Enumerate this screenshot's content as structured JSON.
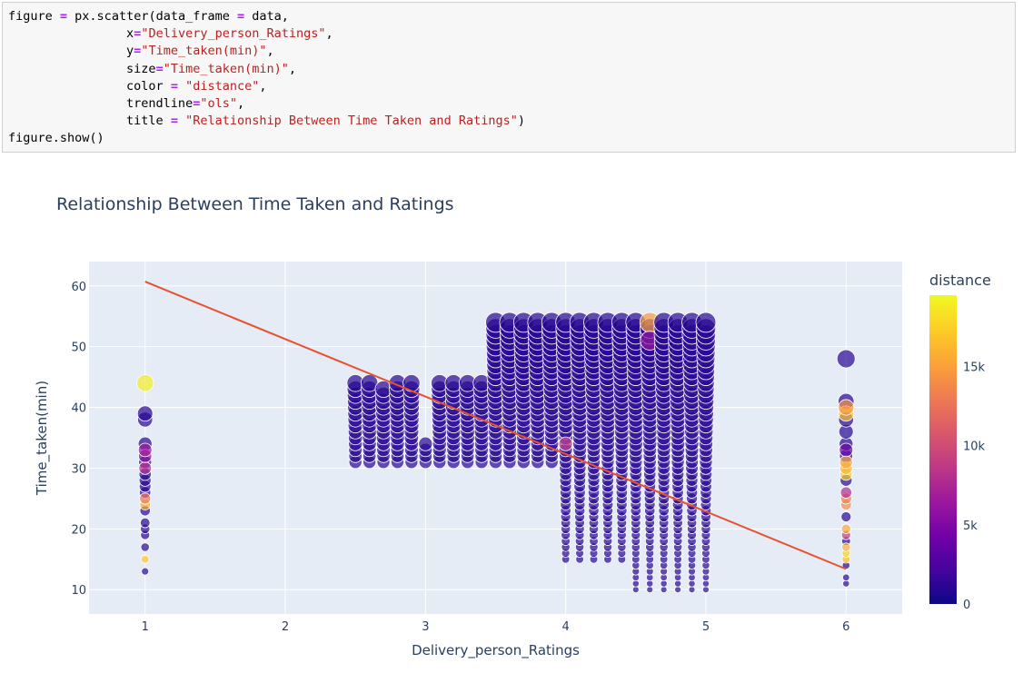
{
  "code": {
    "lines": [
      [
        {
          "t": "figure "
        },
        {
          "t": "=",
          "c": "op"
        },
        {
          "t": " px.scatter(data_frame "
        },
        {
          "t": "=",
          "c": "op"
        },
        {
          "t": " data,"
        }
      ],
      [
        {
          "t": "                x"
        },
        {
          "t": "=",
          "c": "op"
        },
        {
          "t": "\"Delivery_person_Ratings\"",
          "c": "str"
        },
        {
          "t": ","
        }
      ],
      [
        {
          "t": "                y"
        },
        {
          "t": "=",
          "c": "op"
        },
        {
          "t": "\"Time_taken(min)\"",
          "c": "str"
        },
        {
          "t": ","
        }
      ],
      [
        {
          "t": "                size"
        },
        {
          "t": "=",
          "c": "op"
        },
        {
          "t": "\"Time_taken(min)\"",
          "c": "str"
        },
        {
          "t": ","
        }
      ],
      [
        {
          "t": "                color "
        },
        {
          "t": "=",
          "c": "op"
        },
        {
          "t": " "
        },
        {
          "t": "\"distance\"",
          "c": "str"
        },
        {
          "t": ","
        }
      ],
      [
        {
          "t": "                trendline"
        },
        {
          "t": "=",
          "c": "op"
        },
        {
          "t": "\"ols\"",
          "c": "str"
        },
        {
          "t": ","
        }
      ],
      [
        {
          "t": "                title "
        },
        {
          "t": "=",
          "c": "op"
        },
        {
          "t": " "
        },
        {
          "t": "\"Relationship Between Time Taken and Ratings\"",
          "c": "str"
        },
        {
          "t": ")"
        }
      ],
      [
        {
          "t": "figure.show()"
        }
      ]
    ]
  },
  "chart_data": {
    "type": "scatter",
    "title": "Relationship Between Time Taken and Ratings",
    "xlabel": "Delivery_person_Ratings",
    "ylabel": "Time_taken(min)",
    "xlim": [
      0.6,
      6.4
    ],
    "ylim": [
      6,
      64
    ],
    "x_ticks": [
      1,
      2,
      3,
      4,
      5,
      6
    ],
    "y_ticks": [
      10,
      20,
      30,
      40,
      50,
      60
    ],
    "grid": true,
    "colorbar": {
      "title": "distance",
      "range": [
        0,
        19500
      ],
      "ticks": [
        {
          "value": 0,
          "label": "0"
        },
        {
          "value": 5000,
          "label": "5k"
        },
        {
          "value": 10000,
          "label": "10k"
        },
        {
          "value": 15000,
          "label": "15k"
        }
      ],
      "colorscale": [
        "#0d0887",
        "#46039f",
        "#7201a8",
        "#9c179e",
        "#bd3786",
        "#d8576b",
        "#ed7953",
        "#fb9f3a",
        "#fdca26",
        "#f0f921"
      ]
    },
    "size_by": "Time_taken(min)",
    "color_by": "distance",
    "trendline": {
      "type": "ols",
      "color": "#e8512f",
      "points": [
        [
          1,
          60.7
        ],
        [
          6,
          13.4
        ]
      ]
    },
    "series": [
      {
        "x": 1,
        "y": [
          13,
          15,
          17,
          19,
          20,
          21,
          23,
          24,
          25,
          26,
          27,
          28,
          29,
          30,
          31,
          32,
          33,
          34,
          38,
          39,
          44
        ],
        "highlights": [
          {
            "y": 15,
            "d": 17000
          },
          {
            "y": 24,
            "d": 16000
          },
          {
            "y": 25,
            "d": 13000
          },
          {
            "y": 30,
            "d": 8000
          },
          {
            "y": 32,
            "d": 5500
          },
          {
            "y": 33,
            "d": 6500
          },
          {
            "y": 44,
            "d": 19000
          }
        ]
      },
      {
        "x": 2.5,
        "y_range": [
          31,
          44
        ],
        "step": 1
      },
      {
        "x": 2.6,
        "y_range": [
          31,
          44
        ],
        "step": 1
      },
      {
        "x": 2.7,
        "y_range": [
          31,
          43
        ],
        "step": 1
      },
      {
        "x": 2.8,
        "y_range": [
          31,
          44
        ],
        "step": 1
      },
      {
        "x": 2.9,
        "y_range": [
          31,
          44
        ],
        "step": 1
      },
      {
        "x": 3.0,
        "y_range": [
          31,
          34
        ],
        "step": 1
      },
      {
        "x": 3.1,
        "y_range": [
          31,
          44
        ],
        "step": 1
      },
      {
        "x": 3.2,
        "y_range": [
          31,
          44
        ],
        "step": 1
      },
      {
        "x": 3.3,
        "y_range": [
          31,
          44
        ],
        "step": 1
      },
      {
        "x": 3.4,
        "y_range": [
          31,
          44
        ],
        "step": 1
      },
      {
        "x": 3.5,
        "y_range": [
          31,
          54
        ],
        "step": 1
      },
      {
        "x": 3.6,
        "y_range": [
          31,
          54
        ],
        "step": 1
      },
      {
        "x": 3.7,
        "y_range": [
          31,
          54
        ],
        "step": 1
      },
      {
        "x": 3.8,
        "y_range": [
          31,
          54
        ],
        "step": 1
      },
      {
        "x": 3.9,
        "y_range": [
          31,
          54
        ],
        "step": 1
      },
      {
        "x": 4.0,
        "y_range": [
          15,
          54
        ],
        "step": 1,
        "highlights": [
          {
            "y": 34,
            "d": 8500
          }
        ]
      },
      {
        "x": 4.1,
        "y_range": [
          15,
          54
        ],
        "step": 1
      },
      {
        "x": 4.2,
        "y_range": [
          15,
          54
        ],
        "step": 1
      },
      {
        "x": 4.3,
        "y_range": [
          15,
          54
        ],
        "step": 1
      },
      {
        "x": 4.4,
        "y_range": [
          15,
          54
        ],
        "step": 1
      },
      {
        "x": 4.5,
        "y_range": [
          10,
          54
        ],
        "step": 1
      },
      {
        "x": 4.6,
        "y_range": [
          10,
          54
        ],
        "step": 1,
        "highlights": [
          {
            "y": 54,
            "d": 15000
          },
          {
            "y": 51,
            "d": 6000
          }
        ]
      },
      {
        "x": 4.7,
        "y_range": [
          10,
          54
        ],
        "step": 1
      },
      {
        "x": 4.8,
        "y_range": [
          10,
          54
        ],
        "step": 1
      },
      {
        "x": 4.9,
        "y_range": [
          10,
          54
        ],
        "step": 1
      },
      {
        "x": 5.0,
        "y_range": [
          10,
          54
        ],
        "step": 1
      },
      {
        "x": 6,
        "y": [
          11,
          12,
          14,
          15,
          16,
          17,
          18,
          19,
          20,
          22,
          24,
          25,
          26,
          28,
          29,
          30,
          31,
          32,
          33,
          34,
          36,
          38,
          39,
          40,
          41,
          48
        ],
        "highlights": [
          {
            "y": 15,
            "d": 16500
          },
          {
            "y": 16,
            "d": 17500
          },
          {
            "y": 17,
            "d": 16000
          },
          {
            "y": 19,
            "d": 9000
          },
          {
            "y": 20,
            "d": 15500
          },
          {
            "y": 24,
            "d": 14000
          },
          {
            "y": 25,
            "d": 13500
          },
          {
            "y": 26,
            "d": 8000
          },
          {
            "y": 29,
            "d": 17500
          },
          {
            "y": 30,
            "d": 16000
          },
          {
            "y": 31,
            "d": 15500
          },
          {
            "y": 33,
            "d": 4000
          },
          {
            "y": 39,
            "d": 17000
          },
          {
            "y": 40,
            "d": 14500
          }
        ]
      }
    ]
  }
}
